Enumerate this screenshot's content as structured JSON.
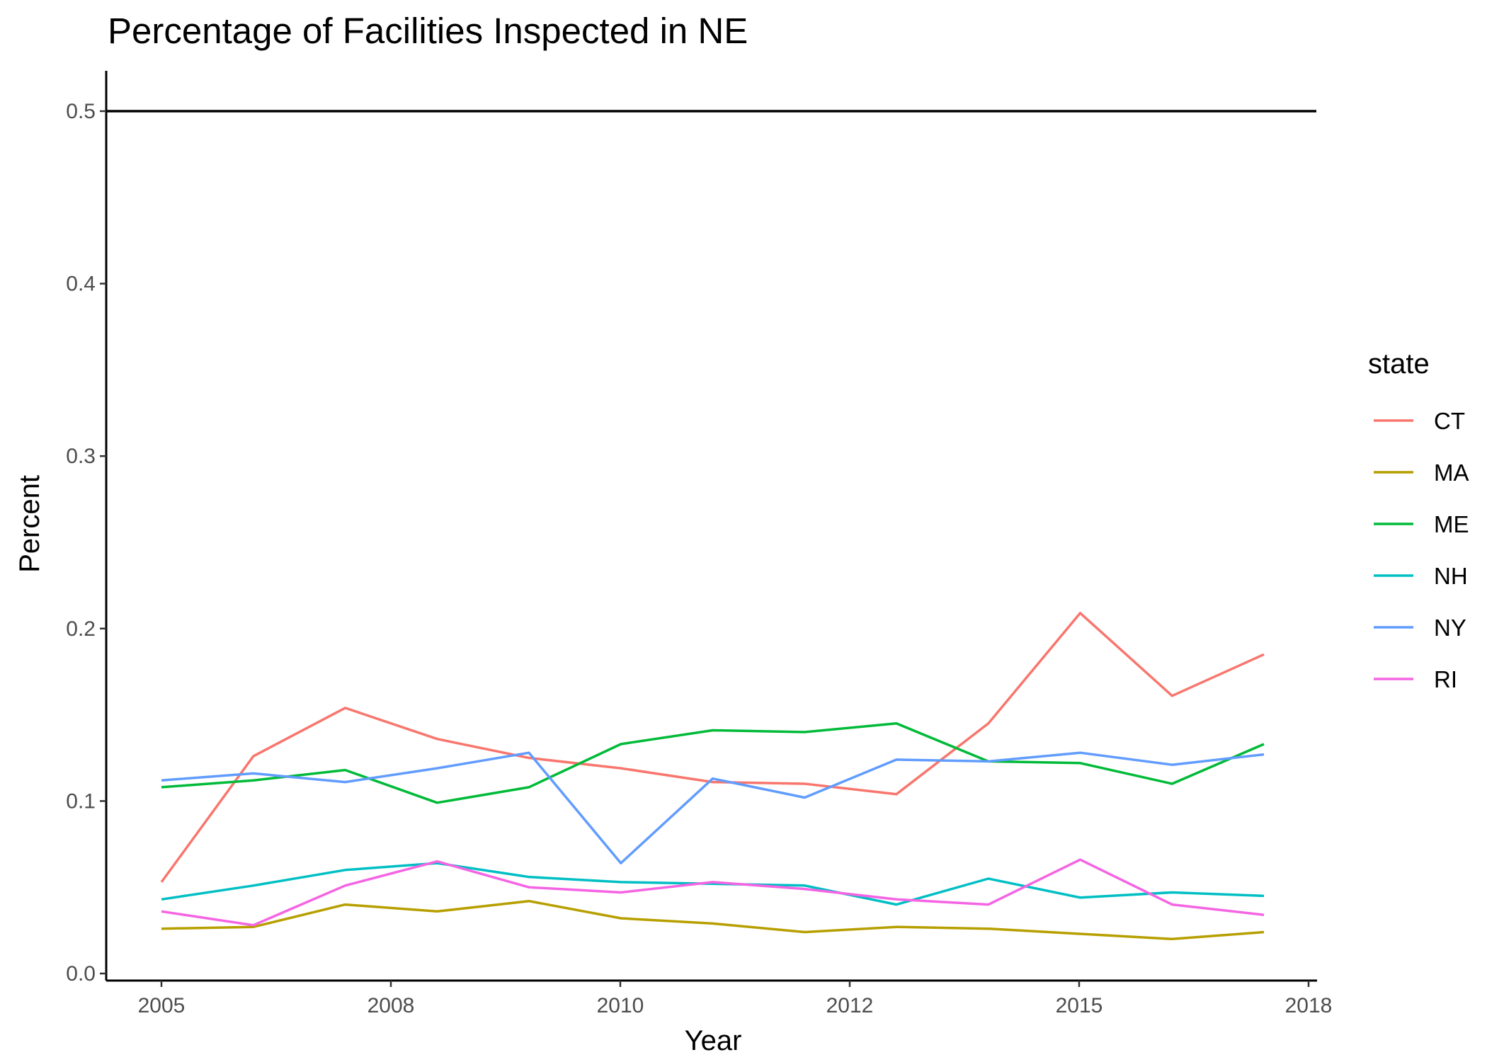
{
  "chart_data": {
    "type": "line",
    "title": "Percentage of Facilities Inspected in NE",
    "xlabel": "Year",
    "ylabel": "Percent",
    "x_tick_labels": [
      "2005",
      "2008",
      "2010",
      "2012",
      "2015",
      "2018"
    ],
    "y_tick_labels": [
      "0.0",
      "0.1",
      "0.2",
      "0.3",
      "0.4",
      "0.5"
    ],
    "ylim": [
      0,
      0.52
    ],
    "reference_line_y": 0.5,
    "grid": false,
    "legend_title": "state",
    "legend_position": "right",
    "x": [
      2005,
      2006,
      2007,
      2008,
      2009,
      2010,
      2011,
      2012,
      2013,
      2014,
      2015,
      2016,
      2017
    ],
    "series": [
      {
        "name": "CT",
        "color": "#F8766D",
        "values": [
          0.053,
          0.126,
          0.154,
          0.136,
          0.125,
          0.119,
          0.111,
          0.11,
          0.104,
          0.145,
          0.209,
          0.161,
          0.185
        ]
      },
      {
        "name": "MA",
        "color": "#B79F00",
        "values": [
          0.026,
          0.027,
          0.04,
          0.036,
          0.042,
          0.032,
          0.029,
          0.024,
          0.027,
          0.026,
          0.023,
          0.02,
          0.024
        ]
      },
      {
        "name": "ME",
        "color": "#00BA38",
        "values": [
          0.108,
          0.112,
          0.118,
          0.099,
          0.108,
          0.133,
          0.141,
          0.14,
          0.145,
          0.123,
          0.122,
          0.11,
          0.133
        ]
      },
      {
        "name": "NH",
        "color": "#00BFC4",
        "values": [
          0.043,
          0.051,
          0.06,
          0.064,
          0.056,
          0.053,
          0.052,
          0.051,
          0.04,
          0.055,
          0.044,
          0.047,
          0.045
        ]
      },
      {
        "name": "NY",
        "color": "#619CFF",
        "values": [
          0.112,
          0.116,
          0.111,
          0.119,
          0.128,
          0.064,
          0.113,
          0.102,
          0.124,
          0.123,
          0.128,
          0.121,
          0.127
        ]
      },
      {
        "name": "RI",
        "color": "#F564E3",
        "values": [
          0.036,
          0.028,
          0.051,
          0.065,
          0.05,
          0.047,
          0.053,
          0.049,
          0.043,
          0.04,
          0.066,
          0.04,
          0.034
        ]
      }
    ]
  }
}
